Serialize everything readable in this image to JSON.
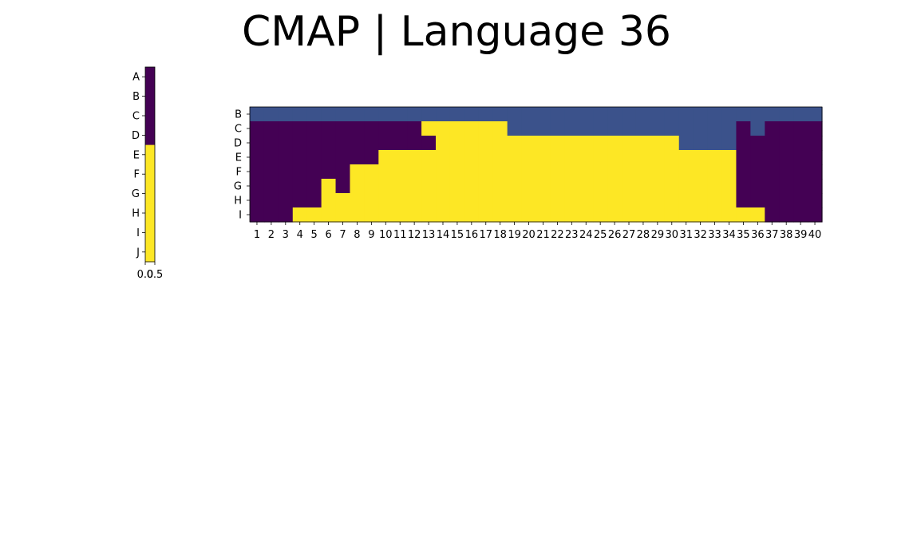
{
  "title": "CMAP | Language 36",
  "colors": {
    "dark_purple": "#440154",
    "blue": "#3b528b",
    "yellow": "#fde725"
  },
  "chart_data": [
    {
      "name": "colormap-strip",
      "type": "heatmap",
      "rows": [
        "A",
        "B",
        "C",
        "D",
        "E",
        "F",
        "G",
        "H",
        "I",
        "J"
      ],
      "x_tick_labels": [
        "0.0",
        "0.5"
      ],
      "values": [
        0,
        0,
        0,
        0,
        2,
        2,
        2,
        2,
        2,
        2
      ]
    },
    {
      "name": "main-heatmap",
      "type": "heatmap",
      "rows": [
        "B",
        "C",
        "D",
        "E",
        "F",
        "G",
        "H",
        "I"
      ],
      "columns": [
        "1",
        "2",
        "3",
        "4",
        "5",
        "6",
        "7",
        "8",
        "9",
        "10",
        "11",
        "12",
        "13",
        "14",
        "15",
        "16",
        "17",
        "18",
        "19",
        "20",
        "21",
        "22",
        "23",
        "24",
        "25",
        "26",
        "27",
        "28",
        "29",
        "30",
        "31",
        "32",
        "33",
        "34",
        "35",
        "36",
        "37",
        "38",
        "39",
        "40"
      ],
      "value_legend": {
        "0": "dark purple",
        "1": "blue",
        "2": "yellow"
      },
      "values": [
        [
          1,
          1,
          1,
          1,
          1,
          1,
          1,
          1,
          1,
          1,
          1,
          1,
          1,
          1,
          1,
          1,
          1,
          1,
          1,
          1,
          1,
          1,
          1,
          1,
          1,
          1,
          1,
          1,
          1,
          1,
          1,
          1,
          1,
          1,
          1,
          1,
          1,
          1,
          1,
          1
        ],
        [
          0,
          0,
          0,
          0,
          0,
          0,
          0,
          0,
          0,
          0,
          0,
          0,
          2,
          2,
          2,
          2,
          2,
          2,
          1,
          1,
          1,
          1,
          1,
          1,
          1,
          1,
          1,
          1,
          1,
          1,
          1,
          1,
          1,
          1,
          0,
          1,
          0,
          0,
          0,
          0
        ],
        [
          0,
          0,
          0,
          0,
          0,
          0,
          0,
          0,
          0,
          0,
          0,
          0,
          0,
          2,
          2,
          2,
          2,
          2,
          2,
          2,
          2,
          2,
          2,
          2,
          2,
          2,
          2,
          2,
          2,
          2,
          1,
          1,
          1,
          1,
          0,
          0,
          0,
          0,
          0,
          0
        ],
        [
          0,
          0,
          0,
          0,
          0,
          0,
          0,
          0,
          0,
          2,
          2,
          2,
          2,
          2,
          2,
          2,
          2,
          2,
          2,
          2,
          2,
          2,
          2,
          2,
          2,
          2,
          2,
          2,
          2,
          2,
          2,
          2,
          2,
          2,
          0,
          0,
          0,
          0,
          0,
          0
        ],
        [
          0,
          0,
          0,
          0,
          0,
          0,
          0,
          2,
          2,
          2,
          2,
          2,
          2,
          2,
          2,
          2,
          2,
          2,
          2,
          2,
          2,
          2,
          2,
          2,
          2,
          2,
          2,
          2,
          2,
          2,
          2,
          2,
          2,
          2,
          0,
          0,
          0,
          0,
          0,
          0
        ],
        [
          0,
          0,
          0,
          0,
          0,
          2,
          0,
          2,
          2,
          2,
          2,
          2,
          2,
          2,
          2,
          2,
          2,
          2,
          2,
          2,
          2,
          2,
          2,
          2,
          2,
          2,
          2,
          2,
          2,
          2,
          2,
          2,
          2,
          2,
          0,
          0,
          0,
          0,
          0,
          0
        ],
        [
          0,
          0,
          0,
          0,
          0,
          2,
          2,
          2,
          2,
          2,
          2,
          2,
          2,
          2,
          2,
          2,
          2,
          2,
          2,
          2,
          2,
          2,
          2,
          2,
          2,
          2,
          2,
          2,
          2,
          2,
          2,
          2,
          2,
          2,
          0,
          0,
          0,
          0,
          0,
          0
        ],
        [
          0,
          0,
          0,
          2,
          2,
          2,
          2,
          2,
          2,
          2,
          2,
          2,
          2,
          2,
          2,
          2,
          2,
          2,
          2,
          2,
          2,
          2,
          2,
          2,
          2,
          2,
          2,
          2,
          2,
          2,
          2,
          2,
          2,
          2,
          2,
          2,
          0,
          0,
          0,
          0
        ]
      ]
    }
  ]
}
